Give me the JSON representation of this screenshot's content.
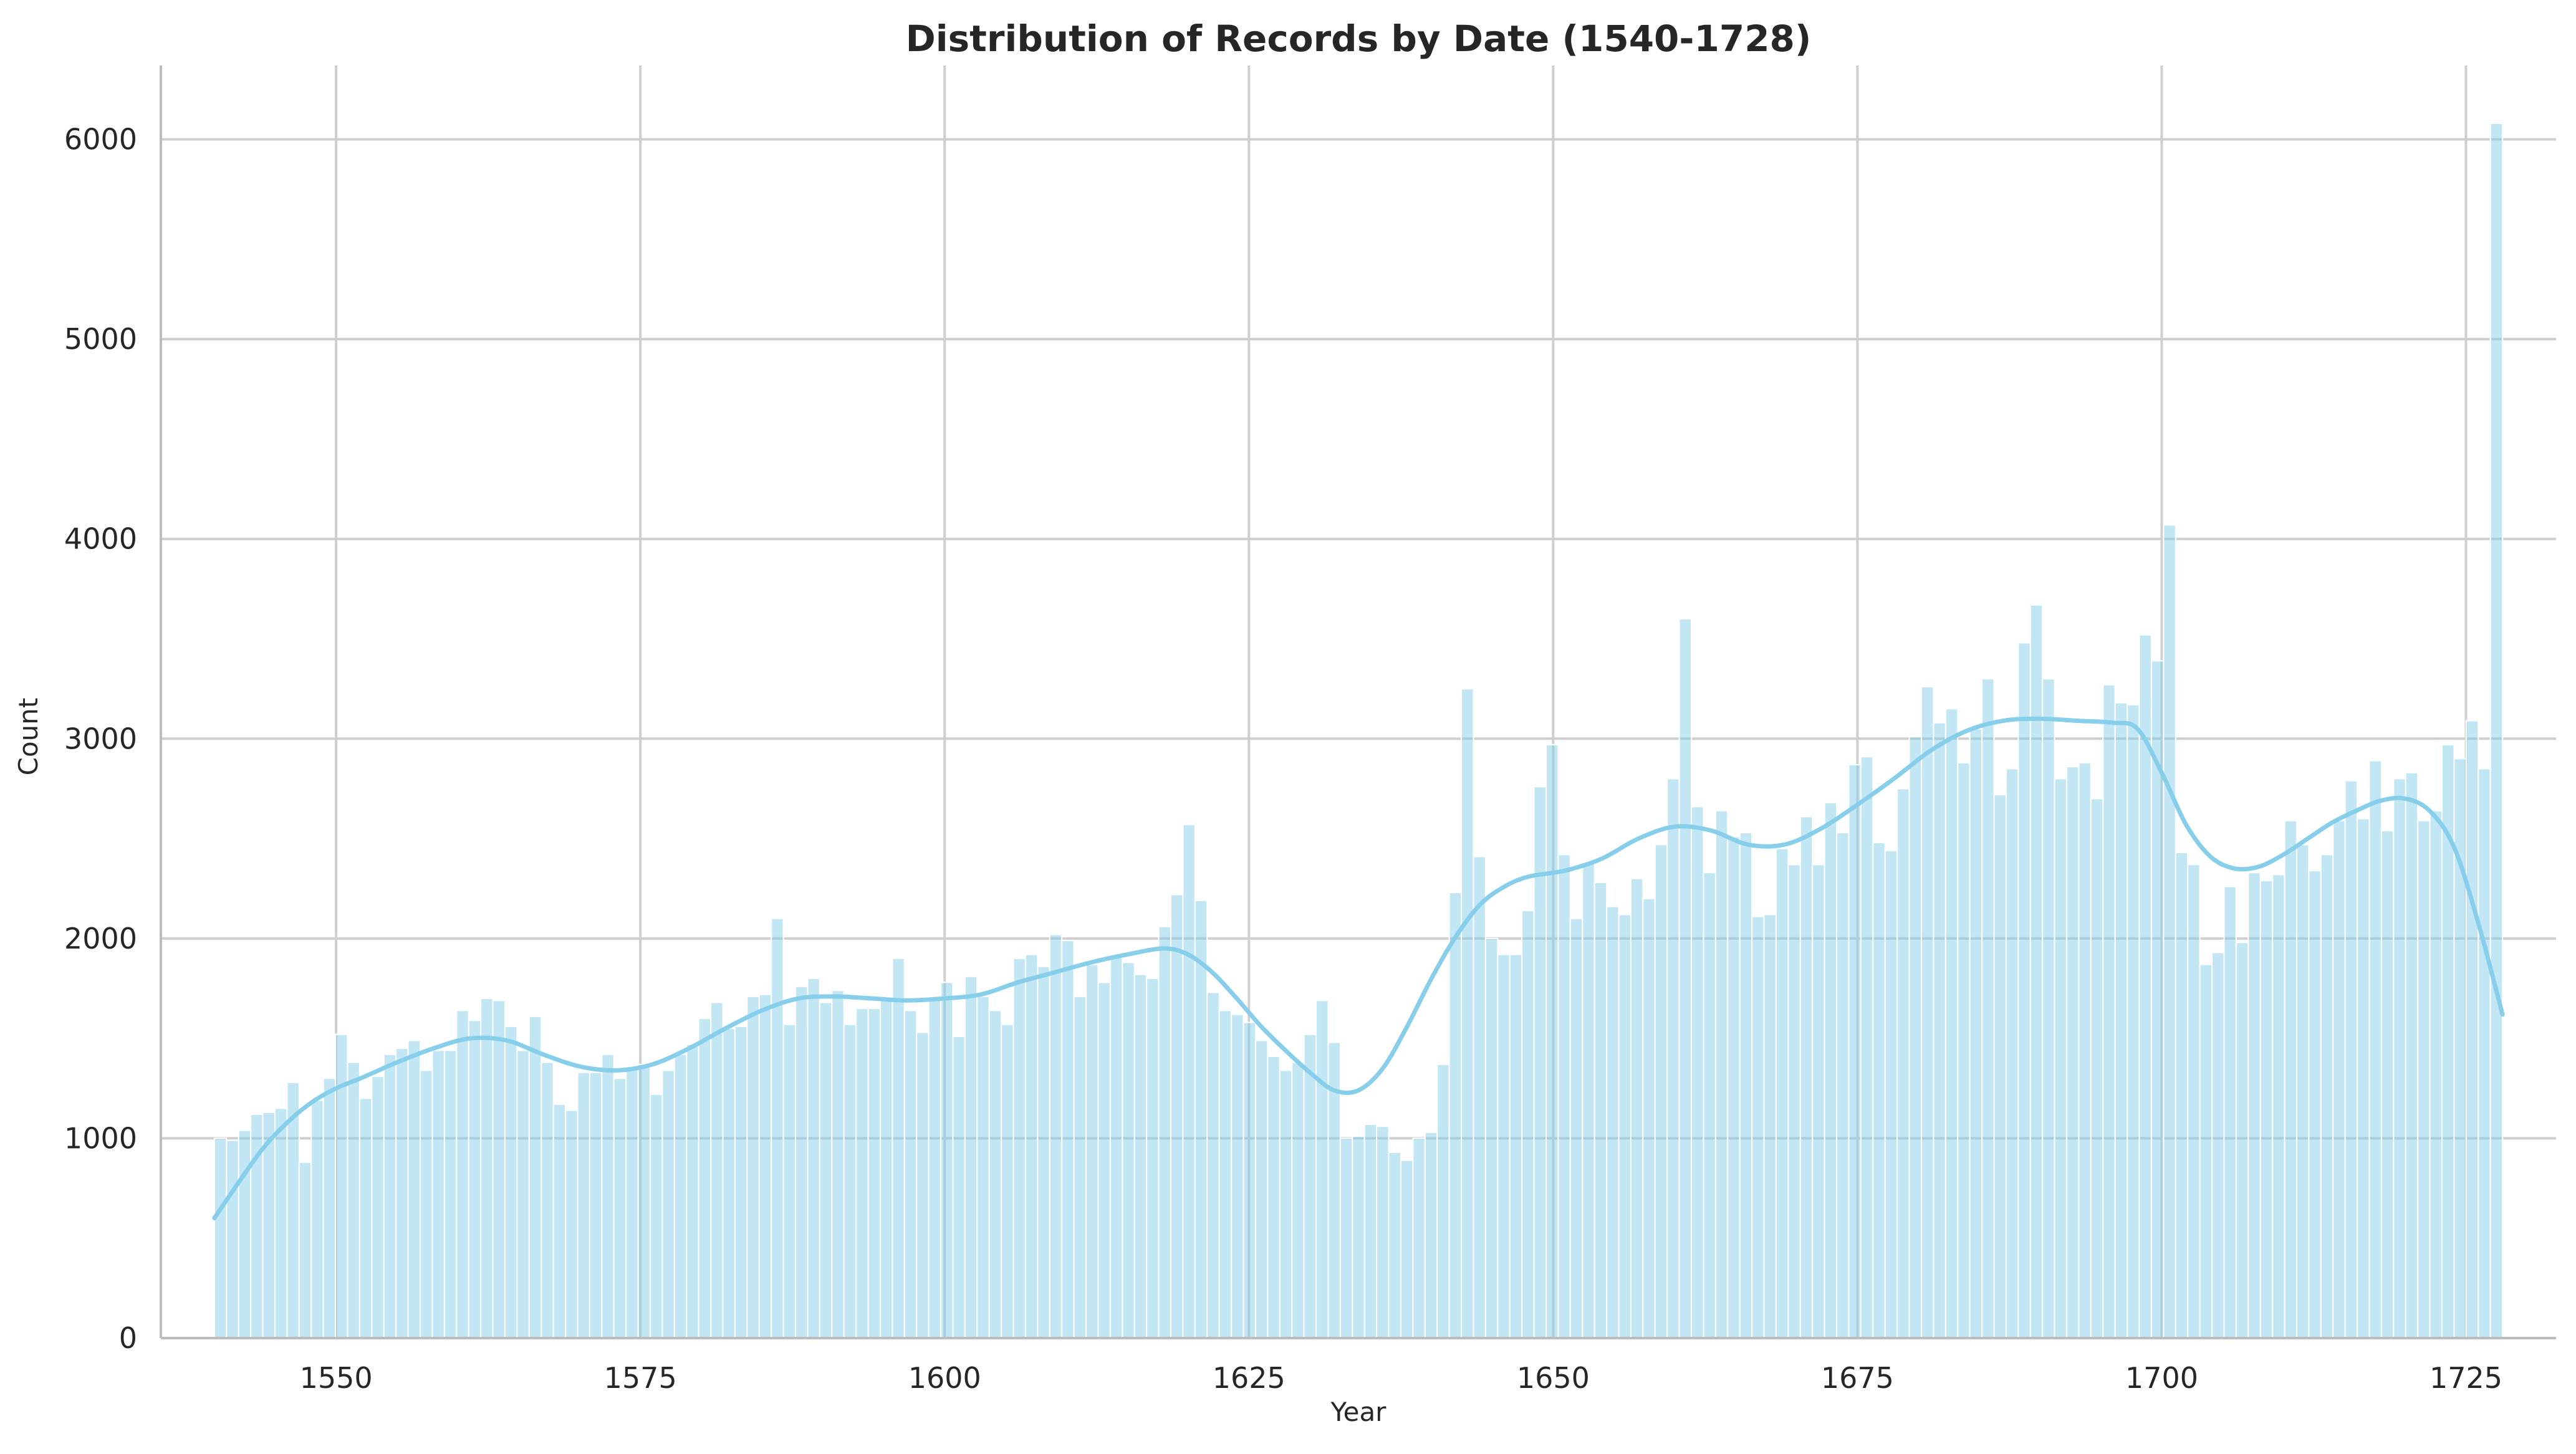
{
  "chart_data": {
    "type": "bar",
    "title": "Distribution of Records by Date (1540-1728)",
    "xlabel": "Year",
    "ylabel": "Count",
    "xlim": [
      1535.6,
      1732.4
    ],
    "ylim": [
      0,
      6370
    ],
    "xticks": [
      1550,
      1575,
      1600,
      1625,
      1650,
      1675,
      1700,
      1725
    ],
    "yticks": [
      0,
      1000,
      2000,
      3000,
      4000,
      5000,
      6000
    ],
    "grid": true,
    "legend": "none",
    "bar_color": "#87ceeb",
    "kde_color": "#87ceeb",
    "bins": {
      "start": 1540,
      "end": 1728,
      "counts": [
        1000,
        990,
        1040,
        1120,
        1130,
        1150,
        1280,
        880,
        1190,
        1300,
        1520,
        1380,
        1200,
        1310,
        1420,
        1450,
        1490,
        1340,
        1440,
        1440,
        1640,
        1590,
        1700,
        1690,
        1560,
        1440,
        1610,
        1380,
        1170,
        1140,
        1330,
        1330,
        1420,
        1300,
        1350,
        1370,
        1220,
        1340,
        1420,
        1470,
        1600,
        1680,
        1550,
        1560,
        1710,
        1720,
        2100,
        1570,
        1760,
        1800,
        1680,
        1740,
        1570,
        1650,
        1650,
        1690,
        1900,
        1640,
        1530,
        1700,
        1780,
        1510,
        1810,
        1710,
        1640,
        1570,
        1900,
        1920,
        1860,
        2020,
        1990,
        1710,
        1870,
        1780,
        1910,
        1880,
        1820,
        1800,
        2060,
        2220,
        2570,
        2190,
        1730,
        1640,
        1620,
        1580,
        1490,
        1410,
        1340,
        1380,
        1520,
        1690,
        1480,
        1000,
        1010,
        1070,
        1060,
        930,
        890,
        1000,
        1030,
        1370,
        2230,
        3250,
        2410,
        2000,
        1920,
        1920,
        2140,
        2760,
        2970,
        2420,
        2100,
        2380,
        2280,
        2160,
        2120,
        2300,
        2200,
        2470,
        2800,
        3600,
        2660,
        2330,
        2640,
        2510,
        2530,
        2110,
        2120,
        2450,
        2370,
        2610,
        2370,
        2680,
        2530,
        2870,
        2910,
        2480,
        2440,
        2750,
        3010,
        3260,
        3080,
        3150,
        2880,
        3050,
        3300,
        2720,
        2850,
        3480,
        3670,
        3300,
        2800,
        2860,
        2880,
        2700,
        3270,
        3180,
        3170,
        3520,
        3390,
        4070,
        2430,
        2370,
        1870,
        1930,
        2260,
        1980,
        2330,
        2290,
        2320,
        2590,
        2470,
        2340,
        2420,
        2590,
        2790,
        2600,
        2890,
        2540,
        2800,
        2830,
        2590,
        2640,
        2970,
        2900,
        3090,
        2850,
        6080
      ]
    },
    "kde": {
      "x": [
        1540,
        1542,
        1544,
        1546,
        1548,
        1550,
        1552,
        1555,
        1558,
        1561,
        1564,
        1567,
        1570,
        1573,
        1576,
        1579,
        1582,
        1585,
        1588,
        1591,
        1594,
        1597,
        1600,
        1603,
        1606,
        1609,
        1612,
        1615,
        1618,
        1620,
        1622,
        1624,
        1626,
        1628,
        1630,
        1632,
        1634,
        1636,
        1638,
        1640,
        1642,
        1644,
        1646,
        1648,
        1651,
        1654,
        1657,
        1660,
        1663,
        1666,
        1669,
        1672,
        1675,
        1678,
        1681,
        1684,
        1687,
        1690,
        1693,
        1696,
        1698,
        1700,
        1702,
        1704,
        1706,
        1708,
        1710,
        1712,
        1714,
        1716,
        1718,
        1720,
        1722,
        1724,
        1726,
        1728
      ],
      "y": [
        600,
        780,
        950,
        1080,
        1180,
        1250,
        1300,
        1380,
        1450,
        1500,
        1490,
        1420,
        1360,
        1340,
        1370,
        1450,
        1550,
        1640,
        1700,
        1710,
        1700,
        1690,
        1700,
        1720,
        1780,
        1830,
        1880,
        1920,
        1950,
        1920,
        1830,
        1700,
        1560,
        1440,
        1330,
        1240,
        1240,
        1350,
        1560,
        1800,
        2010,
        2170,
        2260,
        2310,
        2340,
        2400,
        2500,
        2560,
        2540,
        2470,
        2470,
        2550,
        2670,
        2800,
        2940,
        3040,
        3090,
        3100,
        3090,
        3080,
        3050,
        2830,
        2570,
        2410,
        2350,
        2360,
        2420,
        2500,
        2580,
        2640,
        2690,
        2700,
        2640,
        2460,
        2080,
        1620
      ]
    }
  }
}
